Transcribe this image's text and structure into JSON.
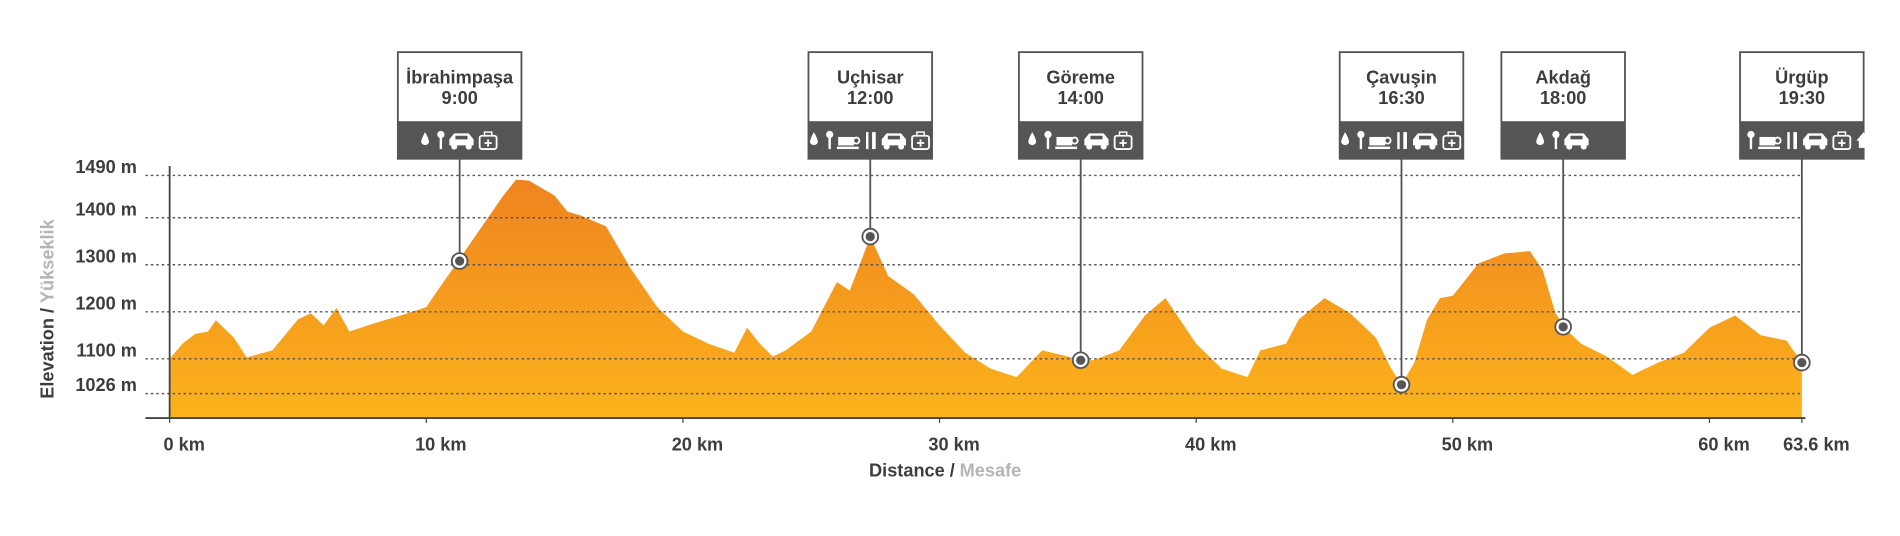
{
  "chart_data": {
    "type": "area",
    "y_label": {
      "primary": "Elevation /",
      "secondary": "Yükseklik"
    },
    "x_label": {
      "primary": "Distance /",
      "secondary": "Mesafe"
    },
    "x": [
      0,
      0.5,
      1,
      1.5,
      1.8,
      2.5,
      3,
      4,
      5,
      5.5,
      6,
      6.5,
      7,
      8,
      9,
      10,
      10.5,
      11,
      12,
      13,
      13.5,
      14,
      15,
      15.5,
      16,
      17,
      18,
      19,
      20,
      21,
      22,
      22.5,
      23,
      23.5,
      24,
      25,
      26,
      26.5,
      27,
      27.3,
      28,
      29,
      30,
      31,
      32,
      33,
      34,
      35,
      35.5,
      36,
      37,
      38,
      38.8,
      40,
      41,
      42,
      42.5,
      43.5,
      44,
      45,
      46,
      47,
      47.6,
      48,
      48.5,
      49,
      49.5,
      50,
      51,
      52,
      53,
      53.5,
      54,
      54.5,
      55,
      56,
      57,
      58,
      59,
      60,
      61,
      62,
      63,
      63.6
    ],
    "values": [
      1100,
      1132,
      1153,
      1158,
      1182,
      1145,
      1103,
      1118,
      1184,
      1197,
      1171,
      1208,
      1158,
      1176,
      1192,
      1210,
      1250,
      1289,
      1368,
      1447,
      1481,
      1479,
      1447,
      1413,
      1405,
      1382,
      1289,
      1210,
      1158,
      1132,
      1113,
      1166,
      1132,
      1105,
      1118,
      1158,
      1263,
      1245,
      1316,
      1360,
      1276,
      1237,
      1171,
      1113,
      1079,
      1061,
      1118,
      1105,
      1097,
      1097,
      1118,
      1192,
      1229,
      1132,
      1079,
      1061,
      1118,
      1132,
      1184,
      1229,
      1197,
      1145,
      1079,
      1045,
      1092,
      1184,
      1229,
      1234,
      1303,
      1324,
      1329,
      1289,
      1197,
      1158,
      1132,
      1105,
      1066,
      1092,
      1113,
      1166,
      1192,
      1150,
      1139,
      1092
    ],
    "colors": {
      "top": "#ef8420",
      "bottom": "#fbb31b"
    },
    "xlim": [
      0,
      63.6
    ],
    "ylim": [
      974,
      1510
    ],
    "xticks": [
      {
        "value": 0,
        "label": "0 km"
      },
      {
        "value": 10,
        "label": "10 km"
      },
      {
        "value": 20,
        "label": "20 km"
      },
      {
        "value": 30,
        "label": "30 km"
      },
      {
        "value": 40,
        "label": "40 km"
      },
      {
        "value": 50,
        "label": "50 km"
      },
      {
        "value": 60,
        "label": "60 km"
      },
      {
        "value": 63.6,
        "label": "63.6 km"
      }
    ],
    "yticks": [
      {
        "value": 1026,
        "label": "1026 m"
      },
      {
        "value": 1100,
        "label": "1100 m"
      },
      {
        "value": 1200,
        "label": "1200 m"
      },
      {
        "value": 1300,
        "label": "1300 m"
      },
      {
        "value": 1400,
        "label": "1400 m"
      },
      {
        "value": 1490,
        "label": "1490 m"
      }
    ],
    "grid": true,
    "stops": [
      {
        "name": "İbrahimpaşa",
        "time": "9:00",
        "km": 11.3,
        "elevation": 1308
      },
      {
        "name": "Uçhisar",
        "time": "12:00",
        "km": 27.3,
        "elevation": 1360
      },
      {
        "name": "Göreme",
        "time": "14:00",
        "km": 35.5,
        "elevation": 1097
      },
      {
        "name": "Çavuşin",
        "time": "16:30",
        "km": 48,
        "elevation": 1045
      },
      {
        "name": "Akdağ",
        "time": "18:00",
        "km": 54.3,
        "elevation": 1168
      },
      {
        "name": "Ürgüp",
        "time": "19:30",
        "km": 63.6,
        "elevation": 1092
      }
    ]
  }
}
